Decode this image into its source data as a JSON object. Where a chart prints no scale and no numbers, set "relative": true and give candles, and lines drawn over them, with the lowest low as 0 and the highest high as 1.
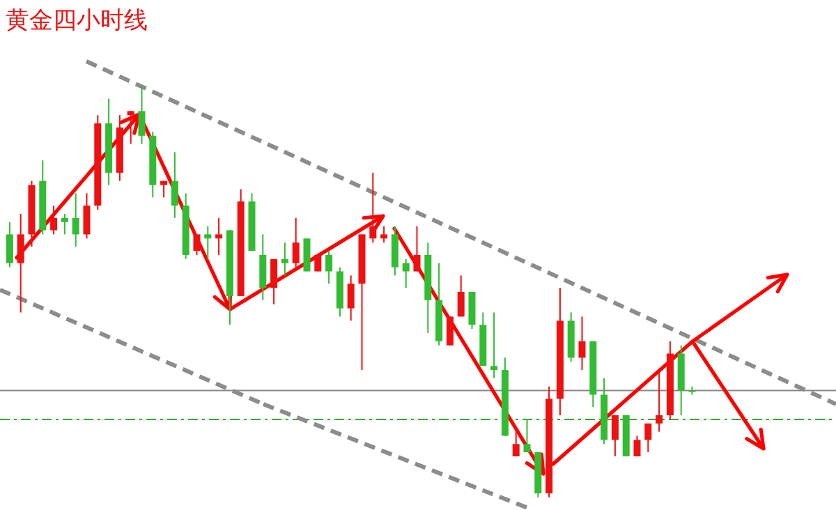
{
  "chart_data": {
    "type": "candlestick",
    "title": "黄金四小时线",
    "relative": true,
    "categories": [
      null,
      null,
      null,
      null,
      null,
      null,
      null,
      null,
      null,
      null,
      null,
      null,
      null,
      null,
      null,
      null,
      null,
      null,
      null,
      null,
      null,
      null,
      null,
      null,
      null,
      null,
      null,
      null,
      null,
      null,
      null,
      null,
      null,
      null,
      null,
      null,
      null,
      null,
      null,
      null,
      null,
      null,
      null,
      null,
      null,
      null,
      null,
      null,
      null,
      null,
      null,
      null,
      null,
      null,
      null,
      null,
      null,
      null,
      null,
      null,
      null,
      null,
      null
    ],
    "colors": [
      "#33bb33",
      "#ee1111",
      "#ee1111",
      "#33bb33",
      "#ee1111",
      "#33bb33",
      "#33bb33",
      "#ee1111",
      "#ee1111",
      "#33bb33",
      "#ee1111",
      "#ee1111",
      "#33bb33",
      "#33bb33",
      "#ee1111",
      "#33bb33",
      "#33bb33",
      "#ee1111",
      "#33bb33",
      "#ee1111",
      "#33bb33",
      "#ee1111",
      "#33bb33",
      "#33bb33",
      "#ee1111",
      "#33bb33",
      "#ee1111",
      "#33bb33",
      "#ee1111",
      "#33bb33",
      "#33bb33",
      "#ee1111",
      "#ee1111",
      "#ee1111",
      "#ee1111",
      "#33bb33",
      "#33bb33",
      "#ee1111",
      "#33bb33",
      "#33bb33",
      "#ee1111",
      "#ee1111",
      "#33bb33",
      "#33bb33",
      "#33bb33",
      "#33bb33",
      "#ee1111",
      "#33bb33",
      "#33bb33",
      "#ee1111",
      "#ee1111",
      "#33bb33",
      "#ee1111",
      "#33bb33",
      "#33bb33",
      "#ee1111",
      "#33bb33",
      "#ee1111",
      "#ee1111",
      "#ee1111",
      "#ee1111",
      "#33bb33",
      "#33bb33"
    ],
    "ohlc": [
      [
        0.64,
        0.67,
        0.56,
        0.57
      ],
      [
        0.57,
        0.69,
        0.45,
        0.64
      ],
      [
        0.64,
        0.77,
        0.61,
        0.76
      ],
      [
        0.77,
        0.82,
        0.64,
        0.65
      ],
      [
        0.65,
        0.71,
        0.64,
        0.68
      ],
      [
        0.68,
        0.69,
        0.64,
        0.67
      ],
      [
        0.68,
        0.74,
        0.61,
        0.64
      ],
      [
        0.64,
        0.74,
        0.63,
        0.71
      ],
      [
        0.71,
        0.93,
        0.7,
        0.91
      ],
      [
        0.91,
        0.97,
        0.76,
        0.79
      ],
      [
        0.79,
        0.93,
        0.77,
        0.9
      ],
      [
        0.93,
        0.94,
        0.86,
        0.94
      ],
      [
        0.94,
        1,
        0.86,
        0.88
      ],
      [
        0.88,
        0.89,
        0.73,
        0.76
      ],
      [
        0.76,
        0.77,
        0.73,
        0.77
      ],
      [
        0.77,
        0.84,
        0.68,
        0.71
      ],
      [
        0.71,
        0.74,
        0.58,
        0.59
      ],
      [
        0.6,
        0.64,
        0.59,
        0.64
      ],
      [
        0.64,
        0.66,
        0.58,
        0.63
      ],
      [
        0.63,
        0.68,
        0.59,
        0.64
      ],
      [
        0.65,
        0.65,
        0.42,
        0.49
      ],
      [
        0.49,
        0.75,
        0.49,
        0.72
      ],
      [
        0.72,
        0.74,
        0.6,
        0.6
      ],
      [
        0.59,
        0.64,
        0.48,
        0.51
      ],
      [
        0.51,
        0.58,
        0.47,
        0.58
      ],
      [
        0.58,
        0.62,
        0.54,
        0.57
      ],
      [
        0.57,
        0.68,
        0.56,
        0.62
      ],
      [
        0.63,
        0.63,
        0.55,
        0.55
      ],
      [
        0.55,
        0.59,
        0.55,
        0.59
      ],
      [
        0.59,
        0.6,
        0.52,
        0.55
      ],
      [
        0.55,
        0.56,
        0.44,
        0.46
      ],
      [
        0.46,
        0.54,
        0.43,
        0.52
      ],
      [
        0.52,
        0.64,
        0.31,
        0.64
      ],
      [
        0.63,
        0.79,
        0.62,
        0.66
      ],
      [
        0.63,
        0.66,
        0.62,
        0.64
      ],
      [
        0.64,
        0.66,
        0.54,
        0.56
      ],
      [
        0.57,
        0.58,
        0.51,
        0.55
      ],
      [
        0.55,
        0.66,
        0.55,
        0.59
      ],
      [
        0.59,
        0.62,
        0.4,
        0.48
      ],
      [
        0.48,
        0.57,
        0.37,
        0.38
      ],
      [
        0.37,
        0.44,
        0.37,
        0.44
      ],
      [
        0.44,
        0.54,
        0.44,
        0.5
      ],
      [
        0.5,
        0.5,
        0.41,
        0.42
      ],
      [
        0.42,
        0.45,
        0.32,
        0.32
      ],
      [
        0.32,
        0.45,
        0.29,
        0.31
      ],
      [
        0.31,
        0.34,
        0.15,
        0.15
      ],
      [
        0.1,
        0.17,
        0.1,
        0.13
      ],
      [
        0.13,
        0.19,
        0.11,
        0.11
      ],
      [
        0.11,
        0.11,
        0,
        0.01
      ],
      [
        0.01,
        0.27,
        0,
        0.24
      ],
      [
        0.24,
        0.51,
        0.2,
        0.43
      ],
      [
        0.43,
        0.45,
        0.33,
        0.34
      ],
      [
        0.34,
        0.44,
        0.31,
        0.38
      ],
      [
        0.38,
        0.38,
        0.22,
        0.25
      ],
      [
        0.25,
        0.29,
        0.13,
        0.14
      ],
      [
        0.14,
        0.2,
        0.1,
        0.2
      ],
      [
        0.2,
        0.2,
        0.1,
        0.1
      ],
      [
        0.1,
        0.15,
        0.1,
        0.14
      ],
      [
        0.14,
        0.18,
        0.11,
        0.18
      ],
      [
        0.18,
        0.31,
        0.16,
        0.2
      ],
      [
        0.2,
        0.38,
        0.19,
        0.35
      ],
      [
        0.35,
        0.37,
        0.2,
        0.26
      ],
      [
        0.26,
        0.27,
        0.25,
        0.26
      ]
    ],
    "ref_lines": [
      {
        "axis": "y",
        "value": 0.26,
        "color": "#888888",
        "line_style": "solid"
      },
      {
        "axis": "y",
        "value": 0.19,
        "color": "#33aa33",
        "line_style": "dashdot"
      }
    ]
  }
}
